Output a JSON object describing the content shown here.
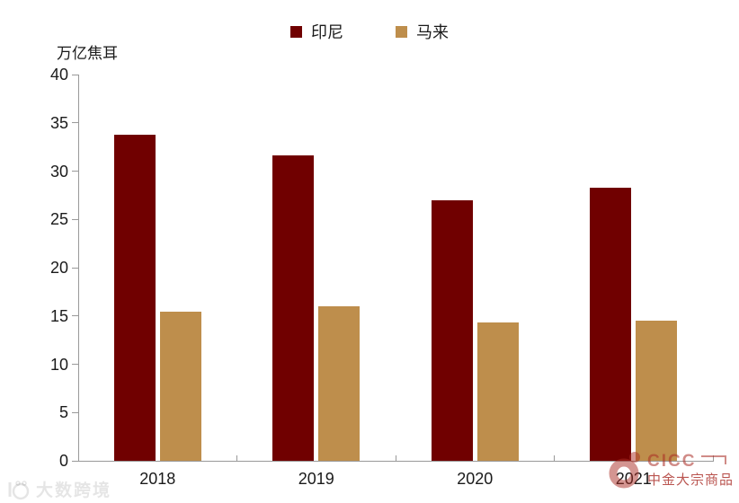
{
  "chart_data": {
    "type": "bar",
    "title": "",
    "unit_label": "万亿焦耳",
    "categories": [
      "2018",
      "2019",
      "2020",
      "2021"
    ],
    "series": [
      {
        "id": "indonesia",
        "name": "印尼",
        "color": "#700000",
        "values": [
          33.8,
          31.6,
          27.0,
          28.3
        ]
      },
      {
        "id": "malaysia",
        "name": "马来",
        "color": "#BE8E4C",
        "values": [
          15.4,
          16.0,
          14.3,
          14.5
        ]
      }
    ],
    "ylim": [
      0,
      40
    ],
    "yticks": [
      0,
      5,
      10,
      15,
      20,
      25,
      30,
      35,
      40
    ],
    "grid": false,
    "legend_position": "top-center",
    "axis_color": "#999999",
    "text_color": "#1a1a1a"
  },
  "watermark": {
    "text": "大数跨境"
  },
  "brand": {
    "name": "CICC",
    "subtitle": "中金大宗商品",
    "color": "#A92B24"
  }
}
